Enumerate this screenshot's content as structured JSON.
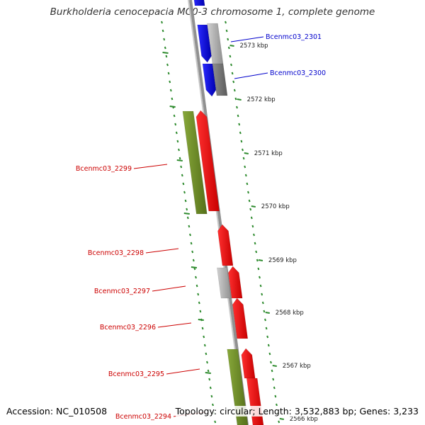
{
  "title": "Burkholderia cenocepacia MC0-3 chromosome 1, complete genome",
  "accession_text": "Accession: NC_010508",
  "summary_text": "Topology: circular; Length: 3,532,883 bp; Genes: 3,233",
  "colors": {
    "backbone": "#909090",
    "tick": "#2e8b2e",
    "forward_cds": "#e00000",
    "reverse_cds": "#0000e0",
    "other_feature": "#6b8e23",
    "gray_feature": "#a8a8a8",
    "label_red": "#cc0000",
    "label_blue": "#0000cc"
  },
  "ticks": [
    {
      "label": "2573 kbp"
    },
    {
      "label": "2572 kbp"
    },
    {
      "label": "2571 kbp"
    },
    {
      "label": "2570 kbp"
    },
    {
      "label": "2569 kbp"
    },
    {
      "label": "2568 kbp"
    },
    {
      "label": "2567 kbp"
    },
    {
      "label": "2566 kbp"
    }
  ],
  "gene_labels": [
    {
      "text": "Bcenmc03_2301",
      "strand": "reverse"
    },
    {
      "text": "Bcenmc03_2300",
      "strand": "reverse"
    },
    {
      "text": "Bcenmc03_2299",
      "strand": "forward"
    },
    {
      "text": "Bcenmc03_2298",
      "strand": "forward"
    },
    {
      "text": "Bcenmc03_2297",
      "strand": "forward"
    },
    {
      "text": "Bcenmc03_2296",
      "strand": "forward"
    },
    {
      "text": "Bcenmc03_2295",
      "strand": "forward"
    },
    {
      "text": "Bcenmc03_2294",
      "strand": "forward"
    }
  ]
}
